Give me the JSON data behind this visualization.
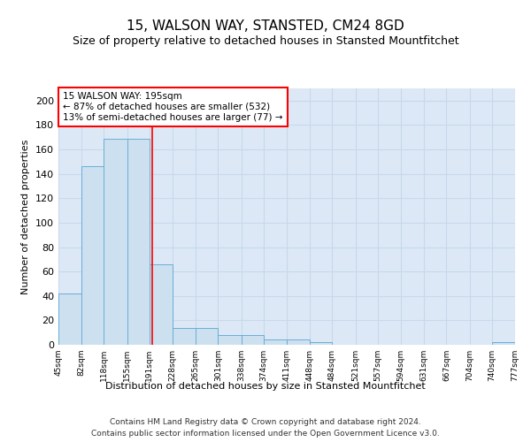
{
  "title": "15, WALSON WAY, STANSTED, CM24 8GD",
  "subtitle": "Size of property relative to detached houses in Stansted Mountfitchet",
  "xlabel": "Distribution of detached houses by size in Stansted Mountfitchet",
  "ylabel": "Number of detached properties",
  "footer_line1": "Contains HM Land Registry data © Crown copyright and database right 2024.",
  "footer_line2": "Contains public sector information licensed under the Open Government Licence v3.0.",
  "bar_edges": [
    45,
    82,
    118,
    155,
    191,
    228,
    265,
    301,
    338,
    374,
    411,
    448,
    484,
    521,
    557,
    594,
    631,
    667,
    704,
    740,
    777
  ],
  "bar_heights": [
    42,
    146,
    169,
    169,
    66,
    14,
    14,
    8,
    8,
    4,
    4,
    2,
    0,
    0,
    0,
    0,
    0,
    0,
    0,
    2
  ],
  "bar_color": "#cce0f0",
  "bar_edge_color": "#6aaed6",
  "property_size": 195,
  "annotation_line1": "15 WALSON WAY: 195sqm",
  "annotation_line2": "← 87% of detached houses are smaller (532)",
  "annotation_line3": "13% of semi-detached houses are larger (77) →",
  "annotation_box_color": "red",
  "vline_color": "red",
  "ylim": [
    0,
    210
  ],
  "yticks": [
    0,
    20,
    40,
    60,
    80,
    100,
    120,
    140,
    160,
    180,
    200
  ],
  "grid_color": "#c8d8eb",
  "background_color": "#dce8f5",
  "title_fontsize": 11,
  "subtitle_fontsize": 9
}
